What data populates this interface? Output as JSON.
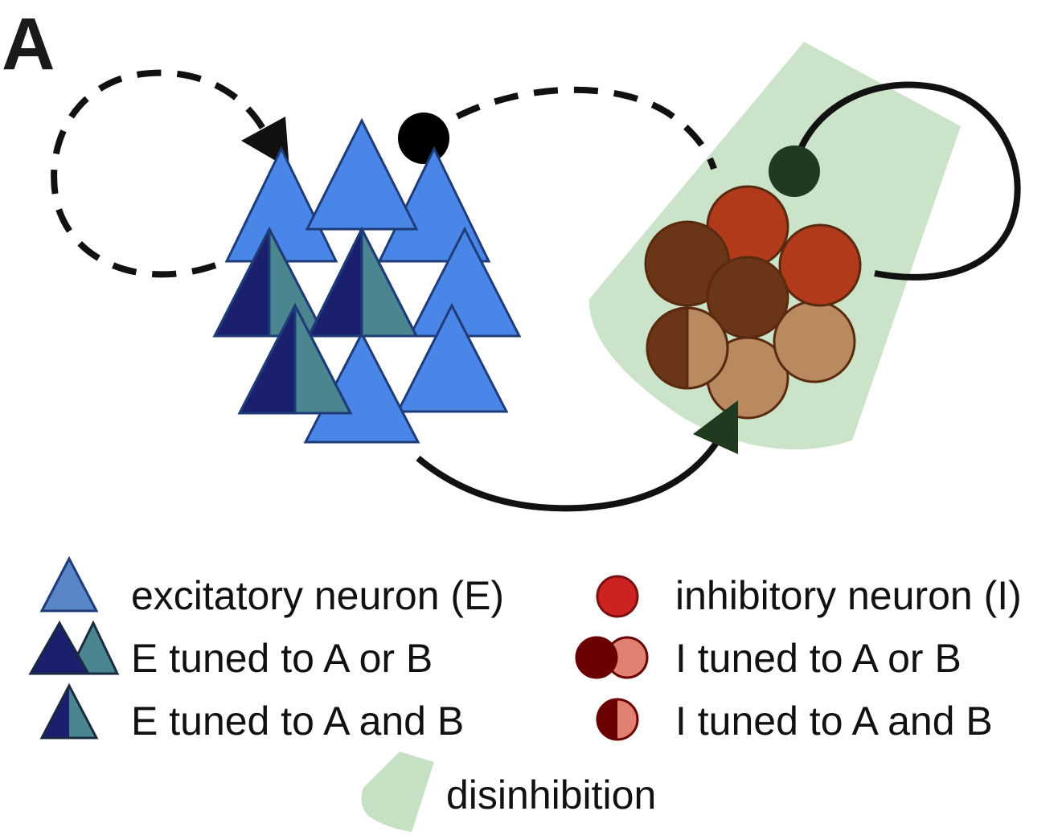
{
  "panel_label": "A",
  "legend": {
    "excitatory": "excitatory neuron (E)",
    "e_or": "E tuned to A or B",
    "e_and": "E tuned to A and B",
    "inhibitory": "inhibitory neuron (I)",
    "i_or": "I tuned to A or B",
    "i_and": "I tuned to A and B",
    "disinhibition": "disinhibition"
  },
  "colors": {
    "e_blue": "#4a86e8",
    "e_dark": "#1a1f6e",
    "e_teal": "#4a8590",
    "i_red": "#b03a1a",
    "i_brown": "#6b3518",
    "i_tan": "#b98960",
    "legend_red": "#cc2222",
    "legend_dark_red": "#6b0000",
    "legend_salmon": "#e08070",
    "disinhibition_green": "#c5e0c2",
    "synapse_dark_green": "#1f3a1f"
  }
}
